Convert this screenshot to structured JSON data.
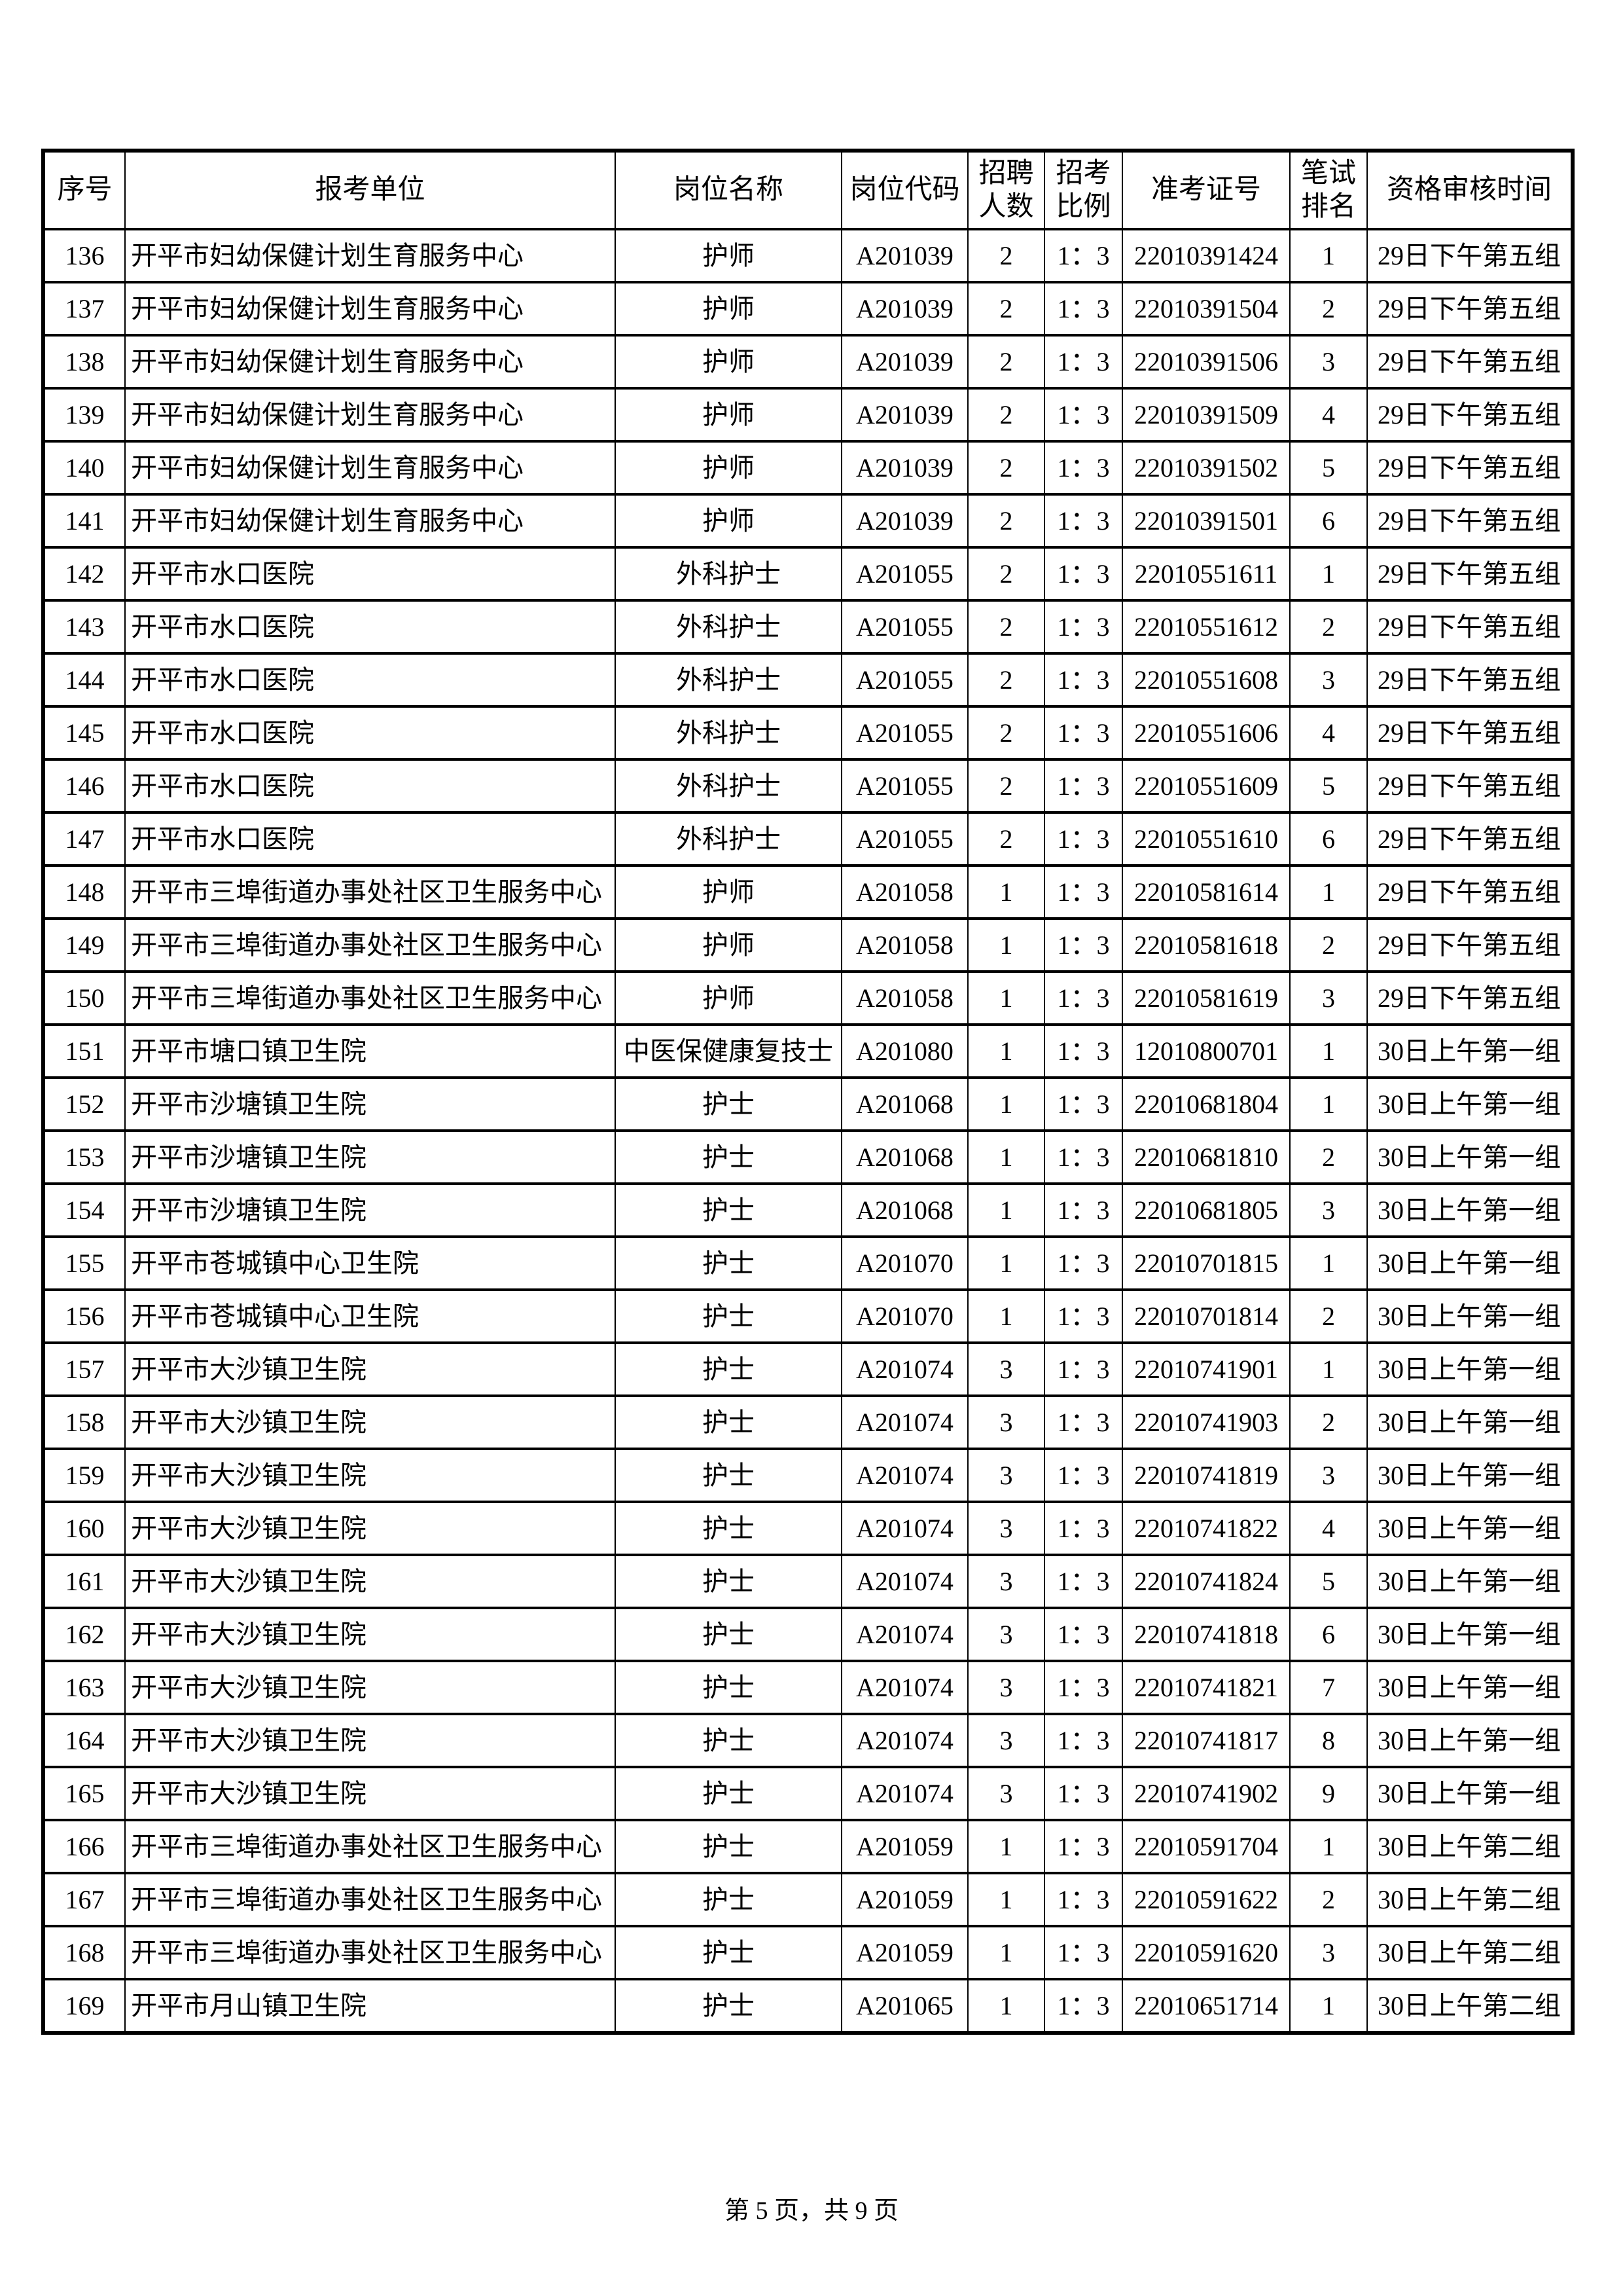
{
  "document": {
    "footer_text": "第 5 页，共 9 页"
  },
  "table": {
    "headers": [
      "序号",
      "报考单位",
      "岗位名称",
      "岗位代码",
      "招聘人数",
      "招考比例",
      "准考证号",
      "笔试排名",
      "资格审核时间"
    ],
    "rows": [
      [
        "136",
        "开平市妇幼保健计划生育服务中心",
        "护师",
        "A201039",
        "2",
        "1：3",
        "22010391424",
        "1",
        "29日下午第五组"
      ],
      [
        "137",
        "开平市妇幼保健计划生育服务中心",
        "护师",
        "A201039",
        "2",
        "1：3",
        "22010391504",
        "2",
        "29日下午第五组"
      ],
      [
        "138",
        "开平市妇幼保健计划生育服务中心",
        "护师",
        "A201039",
        "2",
        "1：3",
        "22010391506",
        "3",
        "29日下午第五组"
      ],
      [
        "139",
        "开平市妇幼保健计划生育服务中心",
        "护师",
        "A201039",
        "2",
        "1：3",
        "22010391509",
        "4",
        "29日下午第五组"
      ],
      [
        "140",
        "开平市妇幼保健计划生育服务中心",
        "护师",
        "A201039",
        "2",
        "1：3",
        "22010391502",
        "5",
        "29日下午第五组"
      ],
      [
        "141",
        "开平市妇幼保健计划生育服务中心",
        "护师",
        "A201039",
        "2",
        "1：3",
        "22010391501",
        "6",
        "29日下午第五组"
      ],
      [
        "142",
        "开平市水口医院",
        "外科护士",
        "A201055",
        "2",
        "1：3",
        "22010551611",
        "1",
        "29日下午第五组"
      ],
      [
        "143",
        "开平市水口医院",
        "外科护士",
        "A201055",
        "2",
        "1：3",
        "22010551612",
        "2",
        "29日下午第五组"
      ],
      [
        "144",
        "开平市水口医院",
        "外科护士",
        "A201055",
        "2",
        "1：3",
        "22010551608",
        "3",
        "29日下午第五组"
      ],
      [
        "145",
        "开平市水口医院",
        "外科护士",
        "A201055",
        "2",
        "1：3",
        "22010551606",
        "4",
        "29日下午第五组"
      ],
      [
        "146",
        "开平市水口医院",
        "外科护士",
        "A201055",
        "2",
        "1：3",
        "22010551609",
        "5",
        "29日下午第五组"
      ],
      [
        "147",
        "开平市水口医院",
        "外科护士",
        "A201055",
        "2",
        "1：3",
        "22010551610",
        "6",
        "29日下午第五组"
      ],
      [
        "148",
        "开平市三埠街道办事处社区卫生服务中心",
        "护师",
        "A201058",
        "1",
        "1：3",
        "22010581614",
        "1",
        "29日下午第五组"
      ],
      [
        "149",
        "开平市三埠街道办事处社区卫生服务中心",
        "护师",
        "A201058",
        "1",
        "1：3",
        "22010581618",
        "2",
        "29日下午第五组"
      ],
      [
        "150",
        "开平市三埠街道办事处社区卫生服务中心",
        "护师",
        "A201058",
        "1",
        "1：3",
        "22010581619",
        "3",
        "29日下午第五组"
      ],
      [
        "151",
        "开平市塘口镇卫生院",
        "中医保健康复技士",
        "A201080",
        "1",
        "1：3",
        "12010800701",
        "1",
        "30日上午第一组"
      ],
      [
        "152",
        "开平市沙塘镇卫生院",
        "护士",
        "A201068",
        "1",
        "1：3",
        "22010681804",
        "1",
        "30日上午第一组"
      ],
      [
        "153",
        "开平市沙塘镇卫生院",
        "护士",
        "A201068",
        "1",
        "1：3",
        "22010681810",
        "2",
        "30日上午第一组"
      ],
      [
        "154",
        "开平市沙塘镇卫生院",
        "护士",
        "A201068",
        "1",
        "1：3",
        "22010681805",
        "3",
        "30日上午第一组"
      ],
      [
        "155",
        "开平市苍城镇中心卫生院",
        "护士",
        "A201070",
        "1",
        "1：3",
        "22010701815",
        "1",
        "30日上午第一组"
      ],
      [
        "156",
        "开平市苍城镇中心卫生院",
        "护士",
        "A201070",
        "1",
        "1：3",
        "22010701814",
        "2",
        "30日上午第一组"
      ],
      [
        "157",
        "开平市大沙镇卫生院",
        "护士",
        "A201074",
        "3",
        "1：3",
        "22010741901",
        "1",
        "30日上午第一组"
      ],
      [
        "158",
        "开平市大沙镇卫生院",
        "护士",
        "A201074",
        "3",
        "1：3",
        "22010741903",
        "2",
        "30日上午第一组"
      ],
      [
        "159",
        "开平市大沙镇卫生院",
        "护士",
        "A201074",
        "3",
        "1：3",
        "22010741819",
        "3",
        "30日上午第一组"
      ],
      [
        "160",
        "开平市大沙镇卫生院",
        "护士",
        "A201074",
        "3",
        "1：3",
        "22010741822",
        "4",
        "30日上午第一组"
      ],
      [
        "161",
        "开平市大沙镇卫生院",
        "护士",
        "A201074",
        "3",
        "1：3",
        "22010741824",
        "5",
        "30日上午第一组"
      ],
      [
        "162",
        "开平市大沙镇卫生院",
        "护士",
        "A201074",
        "3",
        "1：3",
        "22010741818",
        "6",
        "30日上午第一组"
      ],
      [
        "163",
        "开平市大沙镇卫生院",
        "护士",
        "A201074",
        "3",
        "1：3",
        "22010741821",
        "7",
        "30日上午第一组"
      ],
      [
        "164",
        "开平市大沙镇卫生院",
        "护士",
        "A201074",
        "3",
        "1：3",
        "22010741817",
        "8",
        "30日上午第一组"
      ],
      [
        "165",
        "开平市大沙镇卫生院",
        "护士",
        "A201074",
        "3",
        "1：3",
        "22010741902",
        "9",
        "30日上午第一组"
      ],
      [
        "166",
        "开平市三埠街道办事处社区卫生服务中心",
        "护士",
        "A201059",
        "1",
        "1：3",
        "22010591704",
        "1",
        "30日上午第二组"
      ],
      [
        "167",
        "开平市三埠街道办事处社区卫生服务中心",
        "护士",
        "A201059",
        "1",
        "1：3",
        "22010591622",
        "2",
        "30日上午第二组"
      ],
      [
        "168",
        "开平市三埠街道办事处社区卫生服务中心",
        "护士",
        "A201059",
        "1",
        "1：3",
        "22010591620",
        "3",
        "30日上午第二组"
      ],
      [
        "169",
        "开平市月山镇卫生院",
        "护士",
        "A201065",
        "1",
        "1：3",
        "22010651714",
        "1",
        "30日上午第二组"
      ]
    ]
  }
}
